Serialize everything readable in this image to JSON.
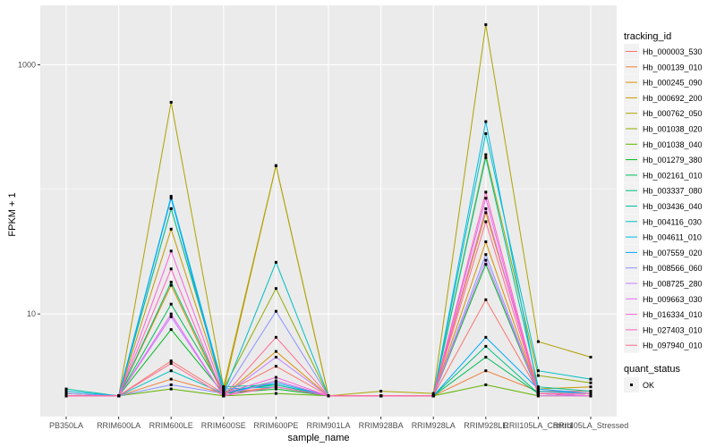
{
  "chart_data": {
    "type": "line",
    "title": "",
    "xlabel": "sample_name",
    "ylabel": "FPKM + 1",
    "y_scale": "log10",
    "ylim": [
      1.5,
      3000
    ],
    "y_ticks": [
      10,
      1000
    ],
    "y_tick_labels": [
      "10",
      "1000"
    ],
    "grid": true,
    "legend_position": "right",
    "categories": [
      "PB350LA",
      "RRIM600LA",
      "RRIM600LE",
      "RRIM600SE",
      "RRIM600PE",
      "RRIM901LA",
      "RRIM928BA",
      "RRIM928LA",
      "RRIM928LE",
      "RRII105LA_Control",
      "RRII105LA_Stressed"
    ],
    "legend_title": "tracking_id",
    "series": [
      {
        "name": "Hb_000003_530",
        "color": "#F8766D",
        "values": [
          2.3,
          2.2,
          4.2,
          2.3,
          3.8,
          2.2,
          2.2,
          2.2,
          13,
          2.4,
          2.4
        ]
      },
      {
        "name": "Hb_000139_010",
        "color": "#EC823C",
        "values": [
          2.2,
          2.2,
          3.0,
          2.3,
          2.6,
          2.2,
          2.2,
          2.2,
          3.5,
          2.4,
          2.3
        ]
      },
      {
        "name": "Hb_000245_090",
        "color": "#DB8E00",
        "values": [
          2.2,
          2.2,
          17,
          2.2,
          5,
          2.2,
          2.2,
          2.2,
          38,
          2.3,
          2.2
        ]
      },
      {
        "name": "Hb_000692_200",
        "color": "#C79800",
        "values": [
          2.2,
          2.2,
          48,
          2.4,
          155,
          2.2,
          2.2,
          2.2,
          65,
          2.5,
          2.6
        ]
      },
      {
        "name": "Hb_000762_050",
        "color": "#AEA200",
        "values": [
          2.3,
          2.2,
          500,
          2.6,
          155,
          2.2,
          2.4,
          2.3,
          2100,
          6,
          4.5
        ]
      },
      {
        "name": "Hb_001038_020",
        "color": "#8EAB00",
        "values": [
          2.2,
          2.2,
          70,
          2.5,
          16,
          2.2,
          2.2,
          2.2,
          190,
          3.2,
          2.8
        ]
      },
      {
        "name": "Hb_001038_040",
        "color": "#5FB300",
        "values": [
          2.2,
          2.2,
          2.5,
          2.2,
          2.3,
          2.2,
          2.2,
          2.2,
          2.7,
          2.2,
          2.2
        ]
      },
      {
        "name": "Hb_001279_380",
        "color": "#00B81F",
        "values": [
          2.2,
          2.2,
          7.5,
          2.3,
          2.5,
          2.2,
          2.2,
          2.2,
          25,
          2.3,
          2.2
        ]
      },
      {
        "name": "Hb_002161_010",
        "color": "#00BC56",
        "values": [
          2.2,
          2.2,
          12,
          2.4,
          2.7,
          2.2,
          2.2,
          2.2,
          4.5,
          2.3,
          2.2
        ]
      },
      {
        "name": "Hb_003337_080",
        "color": "#00BF7D",
        "values": [
          2.2,
          2.2,
          18,
          2.3,
          2.9,
          2.2,
          2.2,
          2.2,
          5.5,
          2.3,
          2.2
        ]
      },
      {
        "name": "Hb_003436_040",
        "color": "#00C19F",
        "values": [
          2.5,
          2.2,
          70,
          2.6,
          2.7,
          2.2,
          2.2,
          2.2,
          180,
          2.6,
          2.4
        ]
      },
      {
        "name": "Hb_004116_030",
        "color": "#00BFC4",
        "values": [
          2.2,
          2.2,
          3.5,
          2.3,
          26,
          2.2,
          2.2,
          2.2,
          280,
          3.5,
          3.0
        ]
      },
      {
        "name": "Hb_004611_010",
        "color": "#00B8E5",
        "values": [
          2.4,
          2.2,
          88,
          2.5,
          2.6,
          2.2,
          2.2,
          2.2,
          350,
          2.4,
          2.3
        ]
      },
      {
        "name": "Hb_007559_020",
        "color": "#00A9FF",
        "values": [
          2.2,
          2.2,
          85,
          2.3,
          2.8,
          2.2,
          2.2,
          2.2,
          6.5,
          2.5,
          2.3
        ]
      },
      {
        "name": "Hb_008566_060",
        "color": "#8B93FF",
        "values": [
          2.3,
          2.2,
          2.7,
          2.3,
          10.5,
          2.2,
          2.2,
          2.2,
          30,
          2.3,
          2.3
        ]
      },
      {
        "name": "Hb_008725_280",
        "color": "#C77CFF",
        "values": [
          2.2,
          2.2,
          9.5,
          2.2,
          4.5,
          2.2,
          2.2,
          2.2,
          27,
          2.3,
          2.2
        ]
      },
      {
        "name": "Hb_009663_030",
        "color": "#E76BF3",
        "values": [
          2.2,
          2.2,
          10,
          2.2,
          2.9,
          2.2,
          2.2,
          2.2,
          85,
          2.2,
          2.2
        ]
      },
      {
        "name": "Hb_016334_010",
        "color": "#FA62DB",
        "values": [
          2.2,
          2.2,
          32,
          2.3,
          3.1,
          2.2,
          2.2,
          2.2,
          70,
          2.3,
          2.2
        ]
      },
      {
        "name": "Hb_027403_010",
        "color": "#FF62BC",
        "values": [
          2.2,
          2.2,
          23,
          2.2,
          2.6,
          2.2,
          2.2,
          2.2,
          95,
          2.3,
          2.3
        ]
      },
      {
        "name": "Hb_097940_010",
        "color": "#FF6C91",
        "values": [
          2.2,
          2.2,
          4.0,
          2.2,
          6.5,
          2.2,
          2.2,
          2.2,
          55,
          2.3,
          2.3
        ]
      }
    ],
    "quant_status": {
      "title": "quant_status",
      "entries": [
        {
          "label": "OK"
        }
      ]
    }
  }
}
